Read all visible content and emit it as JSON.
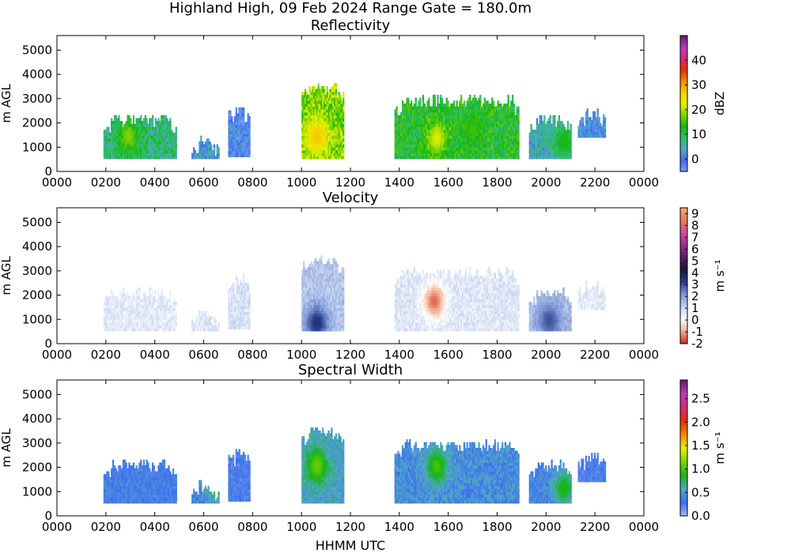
{
  "figure": {
    "title": "Highland High, 09 Feb 2024 Range Gate = 180.0m",
    "xlabel": "HHMM UTC"
  },
  "chart_data": [
    {
      "type": "heatmap",
      "title": "Reflectivity",
      "xlabel": "HHMM UTC",
      "ylabel": "m AGL",
      "xlim": [
        0,
        2400
      ],
      "ylim": [
        0,
        5600
      ],
      "x_ticks": [
        "0000",
        "0200",
        "0400",
        "0600",
        "0800",
        "1000",
        "1200",
        "1400",
        "1600",
        "1800",
        "2000",
        "2200",
        "0000"
      ],
      "y_ticks": [
        "0",
        "1000",
        "2000",
        "3000",
        "4000",
        "5000"
      ],
      "colorbar": {
        "label": "dBZ",
        "range": [
          -5,
          50
        ],
        "ticks": [
          "0",
          "10",
          "20",
          "30",
          "40"
        ],
        "tick_values": [
          0,
          10,
          20,
          30,
          40
        ],
        "colors": [
          "#7b9cf5",
          "#3f6df0",
          "#4fa8c8",
          "#2fbf6a",
          "#15b515",
          "#7fd400",
          "#e8f000",
          "#f7d000",
          "#f78a00",
          "#e82c00",
          "#d52a7a",
          "#b83cc0",
          "#6a1a6a"
        ]
      },
      "cells": [
        {
          "t0": 190,
          "t1": 490,
          "z0": 520,
          "z1": 2300,
          "v": 8,
          "hot": [
            [
              290,
              1400,
              18
            ]
          ]
        },
        {
          "t0": 550,
          "t1": 660,
          "z0": 520,
          "z1": 1400,
          "v": 3,
          "hot": []
        },
        {
          "t0": 700,
          "t1": 790,
          "z0": 600,
          "z1": 2800,
          "v": 0,
          "hot": []
        },
        {
          "t0": 1000,
          "t1": 1170,
          "z0": 520,
          "z1": 3600,
          "v": 18,
          "hot": [
            [
              1060,
              1400,
              28
            ]
          ]
        },
        {
          "t0": 1380,
          "t1": 1890,
          "z0": 520,
          "z1": 3100,
          "v": 12,
          "hot": [
            [
              1550,
              1300,
              22
            ],
            [
              1700,
              1700,
              15
            ]
          ]
        },
        {
          "t0": 1930,
          "t1": 2100,
          "z0": 520,
          "z1": 2300,
          "v": 5,
          "hot": [
            [
              2070,
              1200,
              14
            ]
          ]
        },
        {
          "t0": 2130,
          "t1": 2240,
          "z0": 1400,
          "z1": 2600,
          "v": 1,
          "hot": []
        }
      ]
    },
    {
      "type": "heatmap",
      "title": "Velocity",
      "xlabel": "HHMM UTC",
      "ylabel": "m AGL",
      "xlim": [
        0,
        2400
      ],
      "ylim": [
        0,
        5600
      ],
      "x_ticks": [
        "0000",
        "0200",
        "0400",
        "0600",
        "0800",
        "1000",
        "1200",
        "1400",
        "1600",
        "1800",
        "2000",
        "2200",
        "0000"
      ],
      "y_ticks": [
        "0",
        "1000",
        "2000",
        "3000",
        "4000",
        "5000"
      ],
      "colorbar": {
        "label": "m s⁻¹",
        "range": [
          -2,
          9.5
        ],
        "ticks": [
          "-2",
          "-1",
          "0",
          "1",
          "2",
          "3",
          "4",
          "5",
          "6",
          "7",
          "8",
          "9"
        ],
        "tick_values": [
          -2,
          -1,
          0,
          1,
          2,
          3,
          4,
          5,
          6,
          7,
          8,
          9
        ],
        "colors": [
          "#c8281e",
          "#f3a98a",
          "#ffffff",
          "#c6d4f0",
          "#7f98d8",
          "#2a3c8a",
          "#15183a",
          "#5a1a6a",
          "#a02a8a",
          "#d24aa0",
          "#f07a4a",
          "#f4a872"
        ]
      },
      "cells": [
        {
          "t0": 190,
          "t1": 490,
          "z0": 520,
          "z1": 2300,
          "v": 0.6,
          "hot": []
        },
        {
          "t0": 550,
          "t1": 660,
          "z0": 520,
          "z1": 1400,
          "v": 0.7,
          "hot": []
        },
        {
          "t0": 700,
          "t1": 790,
          "z0": 600,
          "z1": 2800,
          "v": 0.8,
          "hot": []
        },
        {
          "t0": 1000,
          "t1": 1170,
          "z0": 520,
          "z1": 3600,
          "v": 1.4,
          "hot": [
            [
              1060,
              800,
              3.5
            ]
          ]
        },
        {
          "t0": 1380,
          "t1": 1890,
          "z0": 520,
          "z1": 3100,
          "v": 0.7,
          "hot": [
            [
              1540,
              1700,
              -1.5
            ]
          ]
        },
        {
          "t0": 1930,
          "t1": 2100,
          "z0": 520,
          "z1": 2300,
          "v": 1.6,
          "hot": [
            [
              2010,
              900,
              3
            ]
          ]
        },
        {
          "t0": 2130,
          "t1": 2240,
          "z0": 1400,
          "z1": 2600,
          "v": 0.6,
          "hot": []
        }
      ]
    },
    {
      "type": "heatmap",
      "title": "Spectral Width",
      "xlabel": "HHMM UTC",
      "ylabel": "m AGL",
      "xlim": [
        0,
        2400
      ],
      "ylim": [
        0,
        5600
      ],
      "x_ticks": [
        "0000",
        "0200",
        "0400",
        "0600",
        "0800",
        "1000",
        "1200",
        "1400",
        "1600",
        "1800",
        "2000",
        "2200",
        "0000"
      ],
      "y_ticks": [
        "0",
        "1000",
        "2000",
        "3000",
        "4000",
        "5000"
      ],
      "colorbar": {
        "label": "m s⁻¹",
        "range": [
          0,
          2.9
        ],
        "ticks": [
          "0.0",
          "0.5",
          "1.0",
          "1.5",
          "2.0",
          "2.5"
        ],
        "tick_values": [
          0,
          0.5,
          1,
          1.5,
          2,
          2.5
        ],
        "colors": [
          "#a8b8f5",
          "#3f6df0",
          "#4fa8c8",
          "#15b515",
          "#7fd400",
          "#e8f000",
          "#f78a00",
          "#e82c00",
          "#d52a7a",
          "#b83cc0",
          "#6a1a6a"
        ]
      },
      "cells": [
        {
          "t0": 190,
          "t1": 490,
          "z0": 520,
          "z1": 2300,
          "v": 0.35,
          "hot": []
        },
        {
          "t0": 550,
          "t1": 660,
          "z0": 520,
          "z1": 1400,
          "v": 0.4,
          "hot": [
            [
              650,
              1300,
              0.9
            ]
          ]
        },
        {
          "t0": 700,
          "t1": 790,
          "z0": 600,
          "z1": 2800,
          "v": 0.3,
          "hot": []
        },
        {
          "t0": 1000,
          "t1": 1170,
          "z0": 520,
          "z1": 3600,
          "v": 0.55,
          "hot": [
            [
              1060,
              2000,
              1.1
            ]
          ]
        },
        {
          "t0": 1380,
          "t1": 1890,
          "z0": 520,
          "z1": 3100,
          "v": 0.45,
          "hot": [
            [
              1550,
              2000,
              1.0
            ]
          ]
        },
        {
          "t0": 1930,
          "t1": 2100,
          "z0": 520,
          "z1": 2300,
          "v": 0.4,
          "hot": [
            [
              2070,
              1100,
              0.9
            ]
          ]
        },
        {
          "t0": 2130,
          "t1": 2240,
          "z0": 1400,
          "z1": 2600,
          "v": 0.3,
          "hot": []
        }
      ]
    }
  ]
}
